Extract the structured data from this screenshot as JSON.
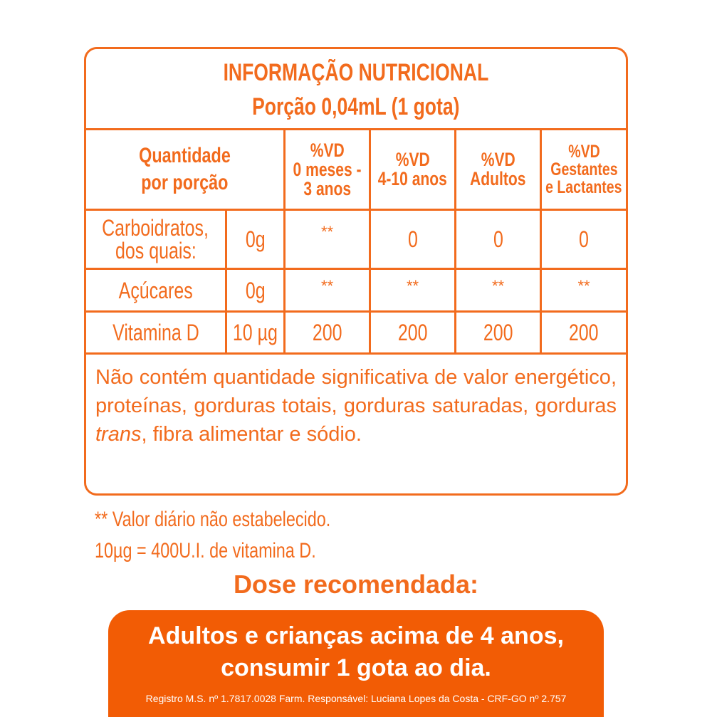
{
  "colors": {
    "accent": "#F26B1D",
    "band": "#F25C05"
  },
  "table": {
    "title": "INFORMAÇÃO NUTRICIONAL",
    "portion": "Porção 0,04mL (1 gota)",
    "header": {
      "quantity": [
        "Quantidade",
        "por porção"
      ],
      "columns": [
        [
          "%VD",
          "0 meses -",
          "3 anos"
        ],
        [
          "%VD",
          "4-10 anos"
        ],
        [
          "%VD",
          "Adultos"
        ],
        [
          "%VD",
          "Gestantes",
          "e Lactantes"
        ]
      ]
    },
    "rows": [
      {
        "name": [
          "Carboidratos,",
          "dos quais:"
        ],
        "amount": "0g",
        "values": [
          "**",
          "0",
          "0",
          "0"
        ]
      },
      {
        "name": [
          "Açúcares"
        ],
        "amount": "0g",
        "values": [
          "**",
          "**",
          "**",
          "**"
        ]
      },
      {
        "name": [
          "Vitamina D"
        ],
        "amount": "10 µg",
        "values": [
          "200",
          "200",
          "200",
          "200"
        ]
      }
    ],
    "note": {
      "pre": "Não contém quantidade significativa de valor energético, proteínas, gorduras totais, gorduras saturadas, gorduras ",
      "italic": "trans",
      "post": ", fibra alimentar e sódio."
    }
  },
  "footnotes": [
    "** Valor diário não estabelecido.",
    "10µg = 400U.I. de vitamina D."
  ],
  "dose": {
    "heading": "Dose recomendada:",
    "lines": [
      "Adultos e crianças acima de 4 anos,",
      "consumir 1 gota ao dia."
    ],
    "registry": "Registro M.S. nº 1.7817.0028  Farm. Responsável: Luciana Lopes da Costa - CRF-GO nº 2.757"
  }
}
